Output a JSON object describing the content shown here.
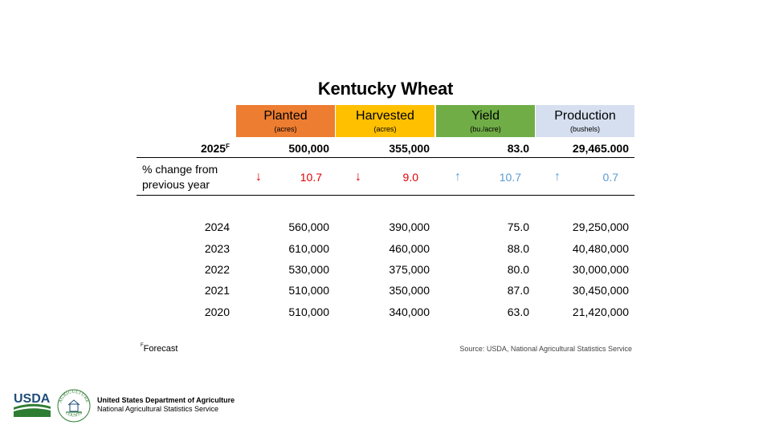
{
  "chart_data": {
    "type": "table",
    "title": "Kentucky Wheat",
    "columns": [
      {
        "label": "Planted",
        "unit": "(acres)",
        "color": "#ED7D31"
      },
      {
        "label": "Harvested",
        "unit": "(acres)",
        "color": "#FFC000"
      },
      {
        "label": "Yield",
        "unit": "(bu./acre)",
        "color": "#70AD47"
      },
      {
        "label": "Production",
        "unit": "(bushels)",
        "color": "#D6DFEF"
      }
    ],
    "forecast_row": {
      "year": "2025",
      "superscript": "F",
      "values": [
        "500,000",
        "355,000",
        "83.0",
        "29,465.000"
      ]
    },
    "change_row": {
      "label_line1": "% change from",
      "label_line2": "previous year",
      "items": [
        {
          "direction": "down",
          "arrow": "↓",
          "value": "10.7",
          "color": "#E00000"
        },
        {
          "direction": "down",
          "arrow": "↓",
          "value": "9.0",
          "color": "#E00000"
        },
        {
          "direction": "up",
          "arrow": "↑",
          "value": "10.7",
          "color": "#5B9BD5"
        },
        {
          "direction": "up",
          "arrow": "↑",
          "value": "0.7",
          "color": "#5B9BD5"
        }
      ]
    },
    "rows": [
      {
        "year": "2024",
        "values": [
          "560,000",
          "390,000",
          "75.0",
          "29,250,000"
        ]
      },
      {
        "year": "2023",
        "values": [
          "610,000",
          "460,000",
          "88.0",
          "40,480,000"
        ]
      },
      {
        "year": "2022",
        "values": [
          "530,000",
          "375,000",
          "80.0",
          "30,000,000"
        ]
      },
      {
        "year": "2021",
        "values": [
          "510,000",
          "350,000",
          "87.0",
          "30,450,000"
        ]
      },
      {
        "year": "2020",
        "values": [
          "510,000",
          "340,000",
          "63.0",
          "21,420,000"
        ]
      }
    ]
  },
  "footnote": {
    "superscript": "F",
    "text": "Forecast"
  },
  "source": "Source: USDA, National Agricultural Statistics Service",
  "logo": {
    "usda": "USDA",
    "seal_top": "AGRICULTURE",
    "seal_bottom": "COUNTS"
  },
  "agency": {
    "line1": "United States Department of Agriculture",
    "line2": "National Agricultural Statistics Service"
  }
}
